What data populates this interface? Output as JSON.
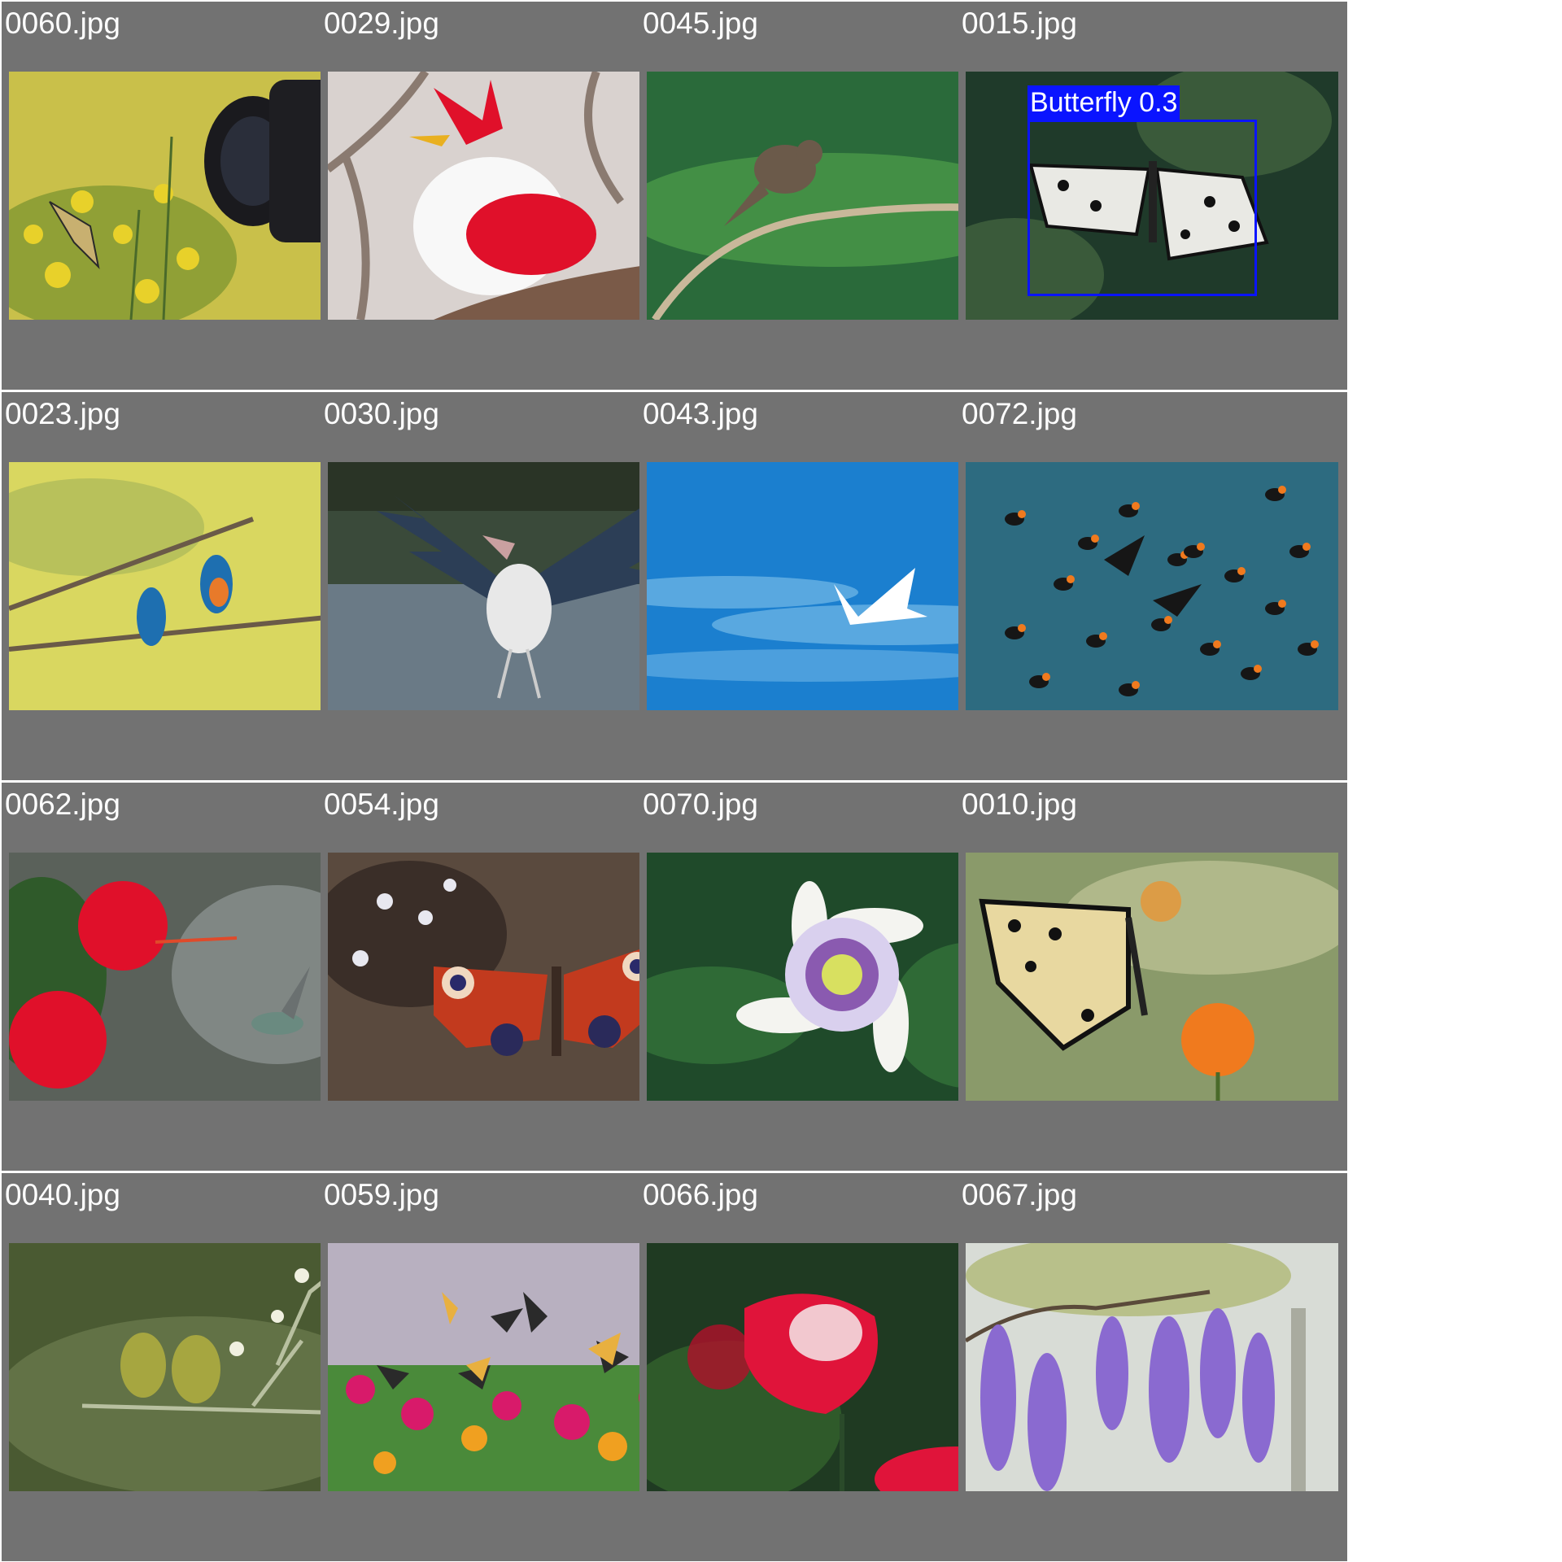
{
  "tiles": [
    {
      "filename": "0060.jpg",
      "subject": "swallowtail-butterfly-camera",
      "palette": [
        "#c9c04a",
        "#6a8a2a",
        "#e8d12a"
      ]
    },
    {
      "filename": "0029.jpg",
      "subject": "red-white-bird",
      "palette": [
        "#d9d2cf",
        "#8a7a70",
        "#e0102a"
      ]
    },
    {
      "filename": "0045.jpg",
      "subject": "starling-on-branch",
      "palette": [
        "#2a6a3a",
        "#4ea04a",
        "#6b5a4a"
      ]
    },
    {
      "filename": "0015.jpg",
      "subject": "paper-kite-butterfly",
      "palette": [
        "#1f3a2a",
        "#3a5a3a",
        "#e9e9e4"
      ],
      "detection": {
        "label": "Butterfly 0.3",
        "color": "#0a14ff"
      }
    },
    {
      "filename": "0023.jpg",
      "subject": "kingfishers-on-branch",
      "palette": [
        "#d9d760",
        "#a9b85a",
        "#1e6fb0"
      ]
    },
    {
      "filename": "0030.jpg",
      "subject": "marabou-stork-wings",
      "palette": [
        "#3a4a3a",
        "#6a7a86",
        "#2c3e56"
      ]
    },
    {
      "filename": "0043.jpg",
      "subject": "tern-in-sky",
      "palette": [
        "#1b7fcf",
        "#59a8e0",
        "#ffffff"
      ]
    },
    {
      "filename": "0072.jpg",
      "subject": "puffins-on-water",
      "palette": [
        "#2d6b80",
        "#3f8aa0",
        "#161616"
      ]
    },
    {
      "filename": "0062.jpg",
      "subject": "hummingbird-hibiscus",
      "palette": [
        "#5a615a",
        "#9aa0a0",
        "#e0102a"
      ]
    },
    {
      "filename": "0054.jpg",
      "subject": "peacock-butterfly",
      "palette": [
        "#5a4a3e",
        "#3a2e28",
        "#c23a1e"
      ]
    },
    {
      "filename": "0070.jpg",
      "subject": "passion-flower",
      "palette": [
        "#1f4a2a",
        "#2f6a36",
        "#d9d0ee"
      ]
    },
    {
      "filename": "0010.jpg",
      "subject": "lime-butterfly-orange-flower",
      "palette": [
        "#8a9a6a",
        "#b0b88a",
        "#f07a1e"
      ]
    },
    {
      "filename": "0040.jpg",
      "subject": "sunbirds-on-branch",
      "palette": [
        "#4a5a32",
        "#7a8a5a",
        "#a6a640"
      ]
    },
    {
      "filename": "0059.jpg",
      "subject": "butterflies-zinnias",
      "palette": [
        "#4a8a3a",
        "#d81a6a",
        "#f0a020"
      ]
    },
    {
      "filename": "0066.jpg",
      "subject": "red-rose",
      "palette": [
        "#1f3a22",
        "#2f5a2a",
        "#e0143a"
      ]
    },
    {
      "filename": "0067.jpg",
      "subject": "wisteria",
      "palette": [
        "#d8dcd6",
        "#b8c08a",
        "#8a6ad0"
      ]
    }
  ]
}
